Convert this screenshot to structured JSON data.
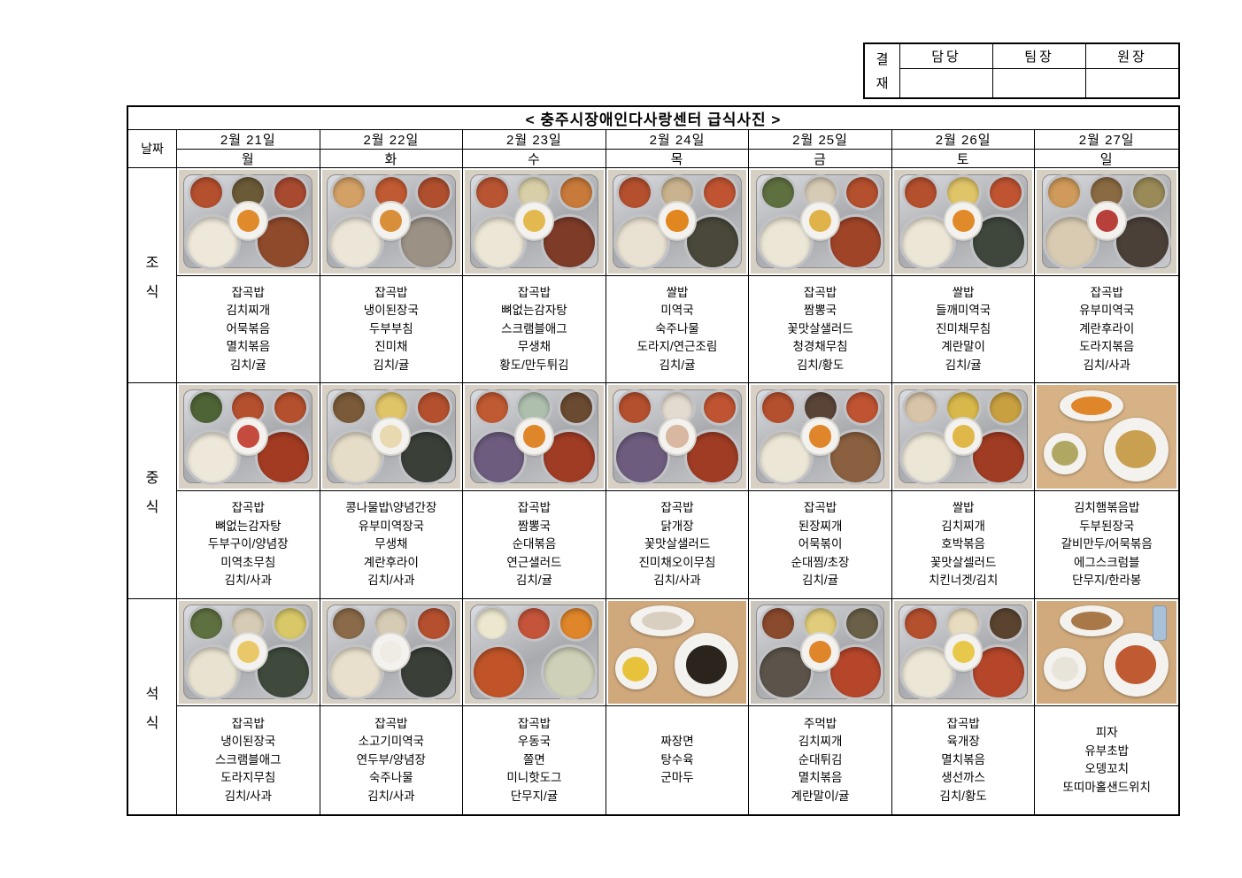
{
  "approval": {
    "stamp": [
      "결",
      "재"
    ],
    "columns": [
      "담당",
      "팀장",
      "원장"
    ]
  },
  "title": "< 충주시장애인다사랑센터 급식사진 >",
  "date_label": "날짜",
  "days": [
    {
      "date": "2월 21일",
      "day": "월"
    },
    {
      "date": "2월 22일",
      "day": "화"
    },
    {
      "date": "2월 23일",
      "day": "수"
    },
    {
      "date": "2월 24일",
      "day": "목"
    },
    {
      "date": "2월 25일",
      "day": "금"
    },
    {
      "date": "2월 26일",
      "day": "토"
    },
    {
      "date": "2월 27일",
      "day": "일"
    }
  ],
  "meals": [
    {
      "label": "조식",
      "cells": [
        {
          "menu": [
            "잡곡밥",
            "김치찌개",
            "어묵볶음",
            "멸치볶음",
            "김치/귤"
          ],
          "photo": {
            "style": "tray",
            "bg": "#d8cfc3",
            "sides": [
              "#b5502e",
              "#6b5a36",
              "#a84a30"
            ],
            "rice": "#eee8da",
            "soup": "#8f4a2c",
            "center": "#df8a2b"
          }
        },
        {
          "menu": [
            "잡곡밥",
            "냉이된장국",
            "두부부침",
            "진미채",
            "김치/귤"
          ],
          "photo": {
            "style": "tray",
            "bg": "#d8d2c6",
            "sides": [
              "#d3a066",
              "#c05a32",
              "#b04f2e"
            ],
            "rice": "#ece6d8",
            "soup": "#9b9185",
            "center": "#d98e3a"
          }
        },
        {
          "menu": [
            "잡곡밥",
            "뼈없는감자탕",
            "스크램블애그",
            "무생채",
            "황도/만두튀김"
          ],
          "photo": {
            "style": "tray",
            "bg": "#d6cfc4",
            "sides": [
              "#b85432",
              "#d8cfa8",
              "#c87a3a"
            ],
            "rice": "#ece6d6",
            "soup": "#7d3b28",
            "center": "#e3b84f"
          }
        },
        {
          "menu": [
            "쌀밥",
            "미역국",
            "숙주나물",
            "도라지/연근조림",
            "김치/귤"
          ],
          "photo": {
            "style": "tray",
            "bg": "#d6cfc4",
            "sides": [
              "#b5502e",
              "#c9b28e",
              "#c05432"
            ],
            "rice": "#e9e2d2",
            "soup": "#49483a",
            "center": "#e2861f"
          }
        },
        {
          "menu": [
            "잡곡밥",
            "짬뽕국",
            "꽃맛살샐러드",
            "청경채무침",
            "김치/황도"
          ],
          "photo": {
            "style": "tray",
            "bg": "#d6cfc4",
            "sides": [
              "#5f7040",
              "#d6cbb4",
              "#b5502e"
            ],
            "rice": "#ece6d6",
            "soup": "#a04428",
            "center": "#e0b34a"
          }
        },
        {
          "menu": [
            "쌀밥",
            "들깨미역국",
            "진미채무침",
            "계란말이",
            "김치/귤"
          ],
          "photo": {
            "style": "tray",
            "bg": "#d6cfc4",
            "sides": [
              "#b5502e",
              "#e0c468",
              "#c05432"
            ],
            "rice": "#ece6d6",
            "soup": "#3f463c",
            "center": "#e08a2a"
          }
        },
        {
          "menu": [
            "잡곡밥",
            "유부미역국",
            "계란후라이",
            "도라지볶음",
            "김치/사과"
          ],
          "photo": {
            "style": "tray",
            "bg": "#d6cfc4",
            "sides": [
              "#cf9a5a",
              "#8a6a42",
              "#9a8a58"
            ],
            "rice": "#d8cbb2",
            "soup": "#4a4038",
            "center": "#b8403a"
          }
        }
      ]
    },
    {
      "label": "중식",
      "cells": [
        {
          "menu": [
            "잡곡밥",
            "뼈없는감자탕",
            "두부구이/양념장",
            "미역초무침",
            "김치/사과"
          ],
          "photo": {
            "style": "tray",
            "bg": "#d8d0c4",
            "sides": [
              "#4f6436",
              "#b5502e",
              "#b5502e"
            ],
            "rice": "#eee8da",
            "soup": "#a33b22",
            "center": "#c44b3e"
          }
        },
        {
          "menu": [
            "콩나물밥\\양념간장",
            "유부미역장국",
            "무생채",
            "계란후라이",
            "김치/사과"
          ],
          "photo": {
            "style": "tray",
            "bg": "#d8d0c4",
            "sides": [
              "#7a5a38",
              "#e0c468",
              "#b5502e"
            ],
            "rice": "#e5ddc8",
            "soup": "#3a3f38",
            "center": "#e8d9b0"
          }
        },
        {
          "menu": [
            "잡곡밥",
            "짬뽕국",
            "순대볶음",
            "연근샐러드",
            "김치/귤"
          ],
          "photo": {
            "style": "tray",
            "bg": "#d8d0c4",
            "sides": [
              "#c05a32",
              "#aebfae",
              "#6a4a30"
            ],
            "rice": "#6d5c7e",
            "soup": "#a03c24",
            "center": "#e0862a"
          }
        },
        {
          "menu": [
            "잡곡밥",
            "닭개장",
            "꽃맛살샐러드",
            "진미채오이무침",
            "김치/사과"
          ],
          "photo": {
            "style": "tray",
            "bg": "#d8d0c4",
            "sides": [
              "#b5502e",
              "#e4dbd0",
              "#c05432"
            ],
            "rice": "#6d5c7e",
            "soup": "#a03c24",
            "center": "#d8b8a0"
          }
        },
        {
          "menu": [
            "잡곡밥",
            "된장찌개",
            "어묵볶이",
            "순대찜/초장",
            "김치/귤"
          ],
          "photo": {
            "style": "tray",
            "bg": "#d8d0c4",
            "sides": [
              "#b5502e",
              "#5a4438",
              "#c05432"
            ],
            "rice": "#ece6d6",
            "soup": "#8a6040",
            "center": "#e0862a"
          }
        },
        {
          "menu": [
            "쌀밥",
            "김치찌개",
            "호박볶음",
            "꽃맛살셀러드",
            "치킨너겟/김치"
          ],
          "photo": {
            "style": "tray",
            "bg": "#d8d0c4",
            "sides": [
              "#d8c4a8",
              "#d8b84a",
              "#c8a040"
            ],
            "rice": "#ece6d6",
            "soup": "#a03c24",
            "center": "#e0b84a"
          }
        },
        {
          "menu": [
            "김치햄볶음밥",
            "두부된장국",
            "갈비만두/어묵볶음",
            "에그스크럼블",
            "단무지/한라봉"
          ],
          "photo": {
            "style": "plates",
            "bg": "#d6b286",
            "main": "#c9a050",
            "side": "#e0862a",
            "extra": "#b0a862"
          }
        }
      ]
    },
    {
      "label": "석식",
      "cells": [
        {
          "menu": [
            "잡곡밥",
            "냉이된장국",
            "스크램블애그",
            "도라지무침",
            "김치/사과"
          ],
          "photo": {
            "style": "tray",
            "bg": "#d6cfc4",
            "sides": [
              "#5f7040",
              "#d6cbb4",
              "#d8c868"
            ],
            "rice": "#e8e2d0",
            "soup": "#3f4a3c",
            "center": "#e8c868"
          }
        },
        {
          "menu": [
            "잡곡밥",
            "소고기미역국",
            "연두부/양념장",
            "숙주나물",
            "김치/사과"
          ],
          "photo": {
            "style": "tray",
            "bg": "#d6cfc4",
            "sides": [
              "#8a6a48",
              "#d6cbb4",
              "#b5502e"
            ],
            "rice": "#e8e0cc",
            "soup": "#3a3f38",
            "center": "#efece4"
          }
        },
        {
          "menu": [
            "잡곡밥",
            "우동국",
            "쫄면",
            "미니핫도그",
            "단무지/귤"
          ],
          "photo": {
            "style": "tray",
            "bg": "#d6cfc4",
            "sides": [
              "#ece8d0",
              "#c4543a",
              "#e0862a"
            ],
            "rice": "#c05428",
            "soup": "#cfd0b8",
            "center": null
          }
        },
        {
          "menu": [
            "짜장면",
            "탕수육",
            "군마두"
          ],
          "photo": {
            "style": "plates",
            "bg": "#cfa87c",
            "main": "#2b241c",
            "side": "#d8cfc0",
            "extra": "#e8c23a"
          }
        },
        {
          "menu": [
            "주먹밥",
            "김치찌개",
            "순대튀김",
            "멸치볶음",
            "계란말이/귤"
          ],
          "photo": {
            "style": "tray",
            "bg": "#c8c4bc",
            "sides": [
              "#8a4a2e",
              "#e0cc7a",
              "#6a6048"
            ],
            "rice": "#5c544a",
            "soup": "#b5462a",
            "center": "#e0862a"
          }
        },
        {
          "menu": [
            "잡곡밥",
            "육개장",
            "멸치볶음",
            "생선까스",
            "김치/황도"
          ],
          "photo": {
            "style": "tray",
            "bg": "#d6cfc4",
            "sides": [
              "#b5502e",
              "#e8dcc0",
              "#5a4430"
            ],
            "rice": "#ece6d6",
            "soup": "#b5462a",
            "center": "#e8c84a"
          }
        },
        {
          "menu": [
            "피자",
            "유부초밥",
            "오뎅꼬치",
            "또띠마홀샌드위치"
          ],
          "photo": {
            "style": "plates",
            "bg": "#d0aa7c",
            "main": "#c05a32",
            "side": "#a87848",
            "extra": "#e8e4da",
            "bottle": "#a8c0d8"
          }
        }
      ]
    }
  ]
}
